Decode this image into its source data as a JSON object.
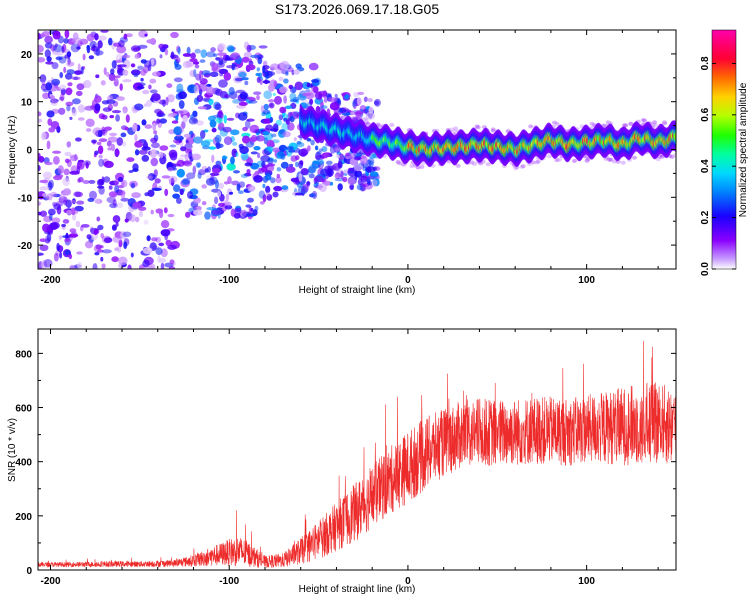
{
  "chart_data": [
    {
      "type": "heatmap",
      "title": "S173.2026.069.17.18.G05",
      "xlabel": "Height of straight line (km)",
      "ylabel": "Frequency (Hz)",
      "xlim": [
        -207,
        150
      ],
      "ylim": [
        -25,
        25
      ],
      "xticks": [
        -200,
        -100,
        0,
        100
      ],
      "yticks": [
        -20,
        -10,
        0,
        10,
        20
      ],
      "colorbar": {
        "label": "Normalized spectral amplitude",
        "range": [
          0.0,
          0.93
        ],
        "ticks": [
          0.0,
          0.2,
          0.4,
          0.6,
          0.8
        ],
        "colors": [
          "#ffffff",
          "#8a00ff",
          "#1a00ff",
          "#00c8ff",
          "#00ff66",
          "#b4ff00",
          "#ffd200",
          "#ff5500",
          "#ff0033",
          "#ff00aa"
        ]
      },
      "ridge": {
        "description_free": true,
        "x": [
          -60,
          -50,
          -40,
          -30,
          -20,
          -10,
          0,
          10,
          20,
          30,
          40,
          50,
          60,
          70,
          80,
          90,
          100,
          110,
          120,
          130,
          140,
          150
        ],
        "freq": [
          6,
          5,
          4,
          3,
          2,
          1.5,
          0.5,
          0,
          0.3,
          0.5,
          1,
          0.5,
          0,
          1,
          2,
          1,
          1.5,
          2,
          1,
          2.5,
          1.5,
          2.5
        ]
      }
    },
    {
      "type": "line",
      "title": "",
      "xlabel": "Height of straight line (km)",
      "ylabel": "SNR (10 * v/v)",
      "xlim": [
        -207,
        150
      ],
      "ylim": [
        0,
        890
      ],
      "xticks": [
        -200,
        -100,
        0,
        100
      ],
      "yticks": [
        0,
        200,
        400,
        600,
        800
      ],
      "color": "#ee2b2b",
      "series": [
        {
          "name": "SNR",
          "x": [
            -207,
            -190,
            -170,
            -150,
            -130,
            -120,
            -110,
            -100,
            -95,
            -90,
            -85,
            -80,
            -70,
            -60,
            -50,
            -40,
            -30,
            -20,
            -10,
            0,
            10,
            20,
            30,
            40,
            50,
            60,
            70,
            80,
            90,
            100,
            110,
            120,
            130,
            140,
            150
          ],
          "mean": [
            20,
            20,
            22,
            22,
            25,
            35,
            50,
            65,
            70,
            60,
            45,
            30,
            35,
            70,
            110,
            160,
            210,
            270,
            330,
            380,
            430,
            470,
            500,
            510,
            505,
            510,
            515,
            515,
            510,
            520,
            525,
            530,
            540,
            540,
            530
          ],
          "spread": [
            10,
            10,
            12,
            12,
            15,
            25,
            40,
            55,
            65,
            55,
            40,
            25,
            30,
            55,
            80,
            100,
            120,
            130,
            140,
            150,
            150,
            140,
            140,
            140,
            140,
            140,
            140,
            140,
            140,
            140,
            150,
            160,
            170,
            170,
            160
          ]
        }
      ]
    }
  ]
}
